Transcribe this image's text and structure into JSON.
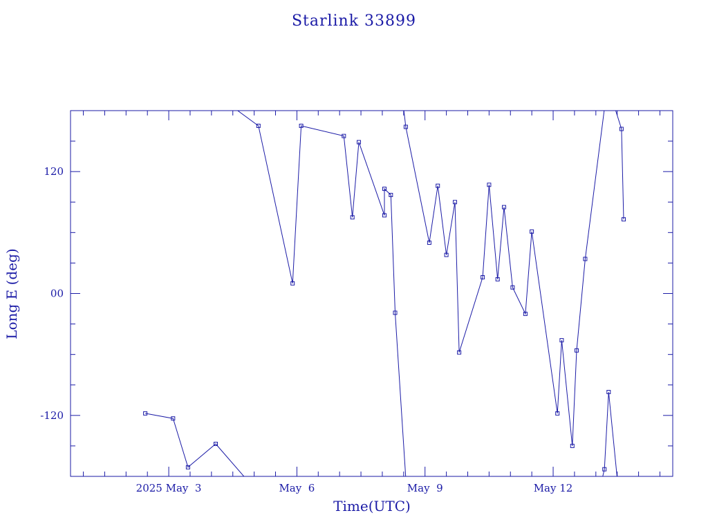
{
  "chart_data": {
    "type": "line",
    "title": "Starlink 33899",
    "xlabel": "Time(UTC)",
    "ylabel": "Long E (deg)",
    "x_tick_labels": [
      "2025 May  3",
      "May  6",
      "May  9",
      "May 12"
    ],
    "x_tick_values": [
      3.0,
      6.0,
      9.0,
      12.0
    ],
    "y_tick_labels": [
      "-120",
      "00",
      "120"
    ],
    "y_tick_values": [
      -120,
      0,
      120
    ],
    "xlim": [
      0.7,
      14.8
    ],
    "ylim": [
      -180,
      180
    ],
    "x_unit": "day of May 2025 (UTC)",
    "y_unit": "deg",
    "series": [
      {
        "points": [
          [
            2.45,
            -118
          ],
          [
            3.1,
            -123
          ],
          [
            3.45,
            -171
          ],
          [
            4.1,
            -148
          ],
          [
            4.8,
            -182
          ]
        ]
      },
      {
        "points": [
          [
            4.55,
            182
          ],
          [
            5.1,
            165
          ],
          [
            5.9,
            10
          ],
          [
            6.1,
            165
          ],
          [
            7.1,
            155
          ],
          [
            7.3,
            75
          ],
          [
            7.45,
            149
          ],
          [
            8.05,
            77
          ],
          [
            8.05,
            103
          ],
          [
            8.2,
            97
          ],
          [
            8.3,
            -19
          ],
          [
            8.55,
            -182
          ]
        ]
      },
      {
        "points": [
          [
            8.5,
            182
          ],
          [
            8.55,
            164
          ],
          [
            9.1,
            50
          ],
          [
            9.3,
            106
          ],
          [
            9.5,
            38
          ],
          [
            9.7,
            90
          ],
          [
            9.8,
            -58
          ],
          [
            10.35,
            16
          ],
          [
            10.5,
            107
          ],
          [
            10.7,
            14
          ],
          [
            10.85,
            85
          ],
          [
            11.05,
            6
          ],
          [
            11.35,
            -20
          ],
          [
            11.5,
            61
          ],
          [
            12.1,
            -118
          ],
          [
            12.2,
            -46
          ],
          [
            12.45,
            -150
          ],
          [
            12.55,
            -56
          ],
          [
            12.75,
            34
          ],
          [
            13.2,
            182
          ]
        ]
      },
      {
        "points": [
          [
            13.15,
            -182
          ],
          [
            13.2,
            -173
          ],
          [
            13.3,
            -97
          ],
          [
            13.5,
            -182
          ]
        ]
      },
      {
        "points": [
          [
            13.45,
            182
          ],
          [
            13.6,
            162
          ],
          [
            13.65,
            73
          ]
        ]
      }
    ],
    "markers": [
      [
        2.45,
        -118
      ],
      [
        3.1,
        -123
      ],
      [
        3.45,
        -171
      ],
      [
        4.1,
        -148
      ],
      [
        5.1,
        165
      ],
      [
        5.9,
        10
      ],
      [
        6.1,
        165
      ],
      [
        7.1,
        155
      ],
      [
        7.3,
        75
      ],
      [
        7.45,
        149
      ],
      [
        8.05,
        77
      ],
      [
        8.05,
        103
      ],
      [
        8.2,
        97
      ],
      [
        8.3,
        -19
      ],
      [
        8.55,
        164
      ],
      [
        9.1,
        50
      ],
      [
        9.3,
        106
      ],
      [
        9.5,
        38
      ],
      [
        9.7,
        90
      ],
      [
        9.8,
        -58
      ],
      [
        10.35,
        16
      ],
      [
        10.5,
        107
      ],
      [
        10.7,
        14
      ],
      [
        10.85,
        85
      ],
      [
        11.05,
        6
      ],
      [
        11.35,
        -20
      ],
      [
        11.5,
        61
      ],
      [
        12.1,
        -118
      ],
      [
        12.2,
        -46
      ],
      [
        12.45,
        -150
      ],
      [
        12.55,
        -56
      ],
      [
        12.75,
        34
      ],
      [
        13.2,
        -173
      ],
      [
        13.3,
        -97
      ],
      [
        13.6,
        162
      ],
      [
        13.65,
        73
      ]
    ],
    "grid": false,
    "colors": {
      "ink": "#1a1aa6",
      "background": "#ffffff"
    }
  }
}
